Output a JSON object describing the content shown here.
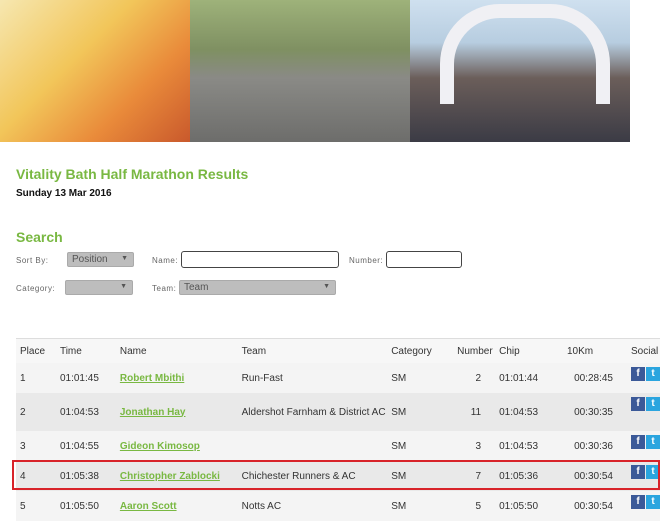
{
  "header": {
    "title": "Vitality Bath Half Marathon Results",
    "date": "Sunday 13 Mar 2016"
  },
  "search": {
    "title": "Search",
    "sort_label": "Sort By:",
    "sort_value": "Position",
    "name_label": "Name:",
    "name_value": "",
    "number_label": "Number:",
    "number_value": "",
    "category_label": "Category:",
    "category_value": "",
    "team_label": "Team:",
    "team_value": "Team"
  },
  "table": {
    "headers": [
      "Place",
      "Time",
      "Name",
      "Team",
      "Category",
      "Number",
      "Chip",
      "10Km",
      "Social"
    ],
    "rows": [
      {
        "place": "1",
        "time": "01:01:45",
        "name": "Robert Mbithi",
        "team": "Run-Fast",
        "category": "SM",
        "number": "2",
        "chip": "01:01:44",
        "k10": "00:28:45"
      },
      {
        "place": "2",
        "time": "01:04:53",
        "name": "Jonathan Hay",
        "team": "Aldershot Farnham & District AC",
        "category": "SM",
        "number": "11",
        "chip": "01:04:53",
        "k10": "00:30:35"
      },
      {
        "place": "3",
        "time": "01:04:55",
        "name": "Gideon Kimosop",
        "team": "",
        "category": "SM",
        "number": "3",
        "chip": "01:04:53",
        "k10": "00:30:36"
      },
      {
        "place": "4",
        "time": "01:05:38",
        "name": "Christopher Zablocki",
        "team": "Chichester Runners & AC",
        "category": "SM",
        "number": "7",
        "chip": "01:05:36",
        "k10": "00:30:54"
      },
      {
        "place": "5",
        "time": "01:05:50",
        "name": "Aaron Scott",
        "team": "Notts AC",
        "category": "SM",
        "number": "5",
        "chip": "01:05:50",
        "k10": "00:30:54"
      }
    ],
    "social": {
      "facebook": "f",
      "twitter": "t"
    },
    "highlight_color": "#d8232a"
  },
  "accent_color": "#79b842"
}
